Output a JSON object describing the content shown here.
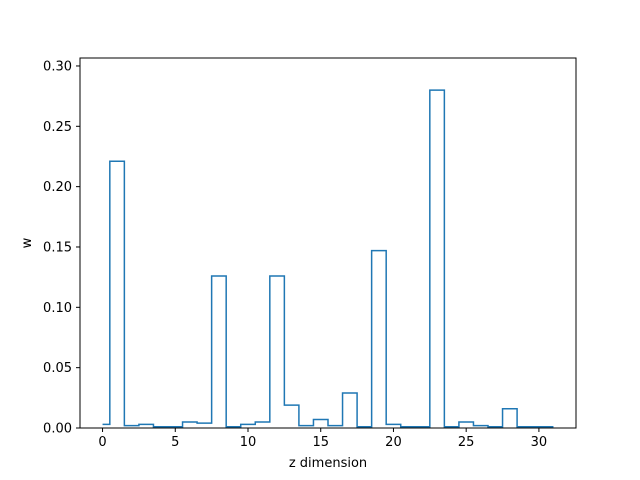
{
  "chart_data": {
    "type": "line",
    "style": "step",
    "title": "",
    "xlabel": "z dimension",
    "ylabel": "w",
    "xlim": [
      -1.55,
      32.55
    ],
    "ylim": [
      0,
      0.3066
    ],
    "xticks": [
      0,
      5,
      10,
      15,
      20,
      25,
      30
    ],
    "xtick_labels": [
      "0",
      "5",
      "10",
      "15",
      "20",
      "25",
      "30"
    ],
    "yticks": [
      0,
      0.05,
      0.1,
      0.15,
      0.2,
      0.25,
      0.3
    ],
    "ytick_labels": [
      "0.00",
      "0.05",
      "0.10",
      "0.15",
      "0.20",
      "0.25",
      "0.30"
    ],
    "grid": false,
    "color": "#1f77b4",
    "x": [
      0,
      1,
      2,
      3,
      4,
      5,
      6,
      7,
      8,
      9,
      10,
      11,
      12,
      13,
      14,
      15,
      16,
      17,
      18,
      19,
      20,
      21,
      22,
      23,
      24,
      25,
      26,
      27,
      28,
      29,
      30,
      31
    ],
    "values": [
      0.003,
      0.221,
      0.002,
      0.003,
      0.001,
      0.001,
      0.005,
      0.004,
      0.126,
      0.001,
      0.003,
      0.005,
      0.126,
      0.019,
      0.002,
      0.007,
      0.002,
      0.029,
      0.001,
      0.147,
      0.003,
      0.001,
      0.001,
      0.28,
      0.001,
      0.005,
      0.002,
      0.001,
      0.016,
      0.001,
      0.001,
      0.001
    ]
  }
}
